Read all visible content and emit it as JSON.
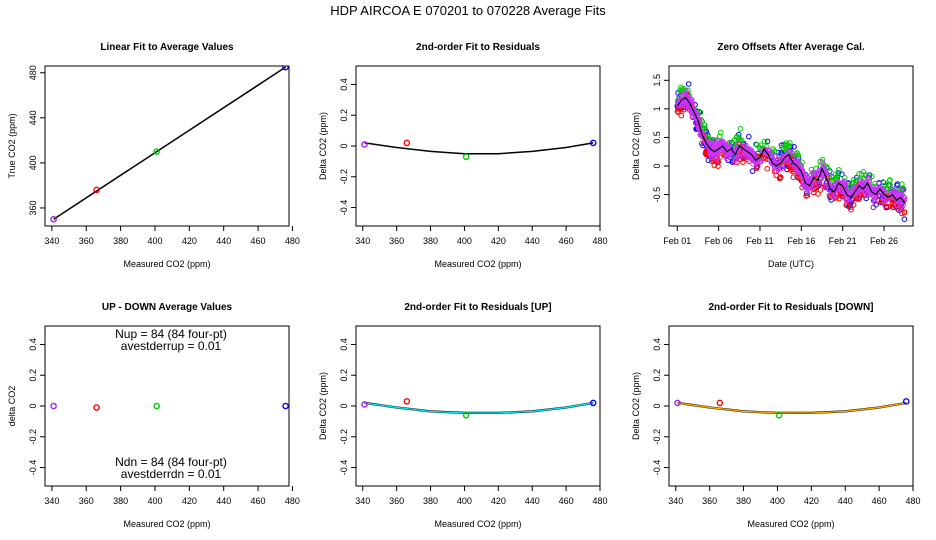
{
  "page_title": "HDP    AIRCOA E    070201 to 070228    Average Fits",
  "colors": {
    "purple": "#a020f0",
    "red": "#ff0000",
    "green": "#00cc00",
    "blue": "#0000ff",
    "black": "#000000",
    "cyan": "#00e5ee",
    "orange": "#ffa500",
    "magenta": "#cc33ff"
  },
  "chart_data": [
    {
      "id": "p1",
      "type": "scatter",
      "title": "Linear Fit to Average Values",
      "xlabel": "Measured CO2 (ppm)",
      "ylabel": "True CO2 (ppm)",
      "xlim": [
        336,
        478
      ],
      "ylim": [
        344,
        486
      ],
      "xticks": [
        340,
        360,
        380,
        400,
        420,
        440,
        460,
        480
      ],
      "yticks": [
        360,
        400,
        440,
        480
      ],
      "points": [
        {
          "x": 341,
          "y": 350,
          "color": "purple"
        },
        {
          "x": 366,
          "y": 376,
          "color": "red"
        },
        {
          "x": 401,
          "y": 410,
          "color": "green"
        },
        {
          "x": 476,
          "y": 485,
          "color": "blue"
        }
      ],
      "line": {
        "x": [
          341,
          476
        ],
        "y": [
          350,
          485
        ],
        "color": "black"
      }
    },
    {
      "id": "p2",
      "type": "scatter",
      "title": "2nd-order Fit to Residuals",
      "xlabel": "Measured CO2 (ppm)",
      "ylabel": "Delta CO2 (ppm)",
      "xlim": [
        336,
        480
      ],
      "ylim": [
        -0.52,
        0.52
      ],
      "xticks": [
        340,
        360,
        380,
        400,
        420,
        440,
        460,
        480
      ],
      "yticks": [
        -0.4,
        -0.2,
        0.0,
        0.2,
        0.4
      ],
      "points": [
        {
          "x": 341,
          "y": 0.01,
          "color": "purple"
        },
        {
          "x": 366,
          "y": 0.02,
          "color": "red"
        },
        {
          "x": 401,
          "y": -0.07,
          "color": "green"
        },
        {
          "x": 476,
          "y": 0.02,
          "color": "blue"
        }
      ],
      "curve": {
        "x": [
          341,
          360,
          380,
          400,
          420,
          440,
          460,
          476
        ],
        "y": [
          0.02,
          -0.01,
          -0.035,
          -0.05,
          -0.05,
          -0.035,
          -0.01,
          0.02
        ],
        "color": "black"
      }
    },
    {
      "id": "p3",
      "type": "scatter",
      "title": "Zero Offsets After Average Cal.",
      "xlabel": "Date (UTC)",
      "ylabel": "Delta CO2 (ppm)",
      "xlim": [
        -1,
        28.5
      ],
      "ylim": [
        -1.05,
        1.75
      ],
      "xticks": [
        0,
        5,
        10,
        15,
        20,
        25
      ],
      "xticklabels": [
        "Feb 01",
        "Feb 06",
        "Feb 11",
        "Feb 16",
        "Feb 21",
        "Feb 26"
      ],
      "yticks": [
        -0.5,
        0.0,
        0.5,
        1.0,
        1.5
      ],
      "trend": {
        "x": [
          0,
          0.5,
          1,
          1.5,
          2,
          2.5,
          3,
          3.5,
          4,
          4.5,
          5,
          5.5,
          6,
          6.5,
          7,
          7.5,
          8,
          8.5,
          9,
          9.5,
          10,
          10.5,
          11,
          11.5,
          12,
          12.5,
          13,
          13.5,
          14,
          14.5,
          15,
          15.5,
          16,
          16.5,
          17,
          17.5,
          18,
          18.5,
          19,
          19.5,
          20,
          20.5,
          21,
          21.5,
          22,
          22.5,
          23,
          23.5,
          24,
          24.5,
          25,
          25.5,
          26,
          26.5,
          27,
          27.5
        ],
        "y": [
          1.05,
          1.15,
          1.2,
          1.1,
          0.95,
          0.8,
          0.55,
          0.4,
          0.3,
          0.25,
          0.3,
          0.35,
          0.25,
          0.3,
          0.2,
          0.35,
          0.3,
          0.25,
          0.2,
          0.1,
          0.15,
          0.3,
          0.2,
          0.05,
          0.0,
          0.05,
          0.15,
          0.2,
          0.05,
          0.0,
          -0.1,
          -0.3,
          -0.35,
          -0.2,
          -0.25,
          -0.05,
          -0.2,
          -0.4,
          -0.45,
          -0.3,
          -0.35,
          -0.5,
          -0.55,
          -0.45,
          -0.35,
          -0.4,
          -0.3,
          -0.45,
          -0.5,
          -0.4,
          -0.5,
          -0.55,
          -0.5,
          -0.6,
          -0.55,
          -0.65
        ],
        "color": "black"
      }
    },
    {
      "id": "p4",
      "type": "scatter",
      "title": "UP - DOWN Average Values",
      "xlabel": "Measured CO2 (ppm)",
      "ylabel": "delta CO2",
      "xlim": [
        336,
        478
      ],
      "ylim": [
        -0.52,
        0.52
      ],
      "xticks": [
        340,
        360,
        380,
        400,
        420,
        440,
        460,
        480
      ],
      "yticks": [
        -0.4,
        -0.2,
        0.0,
        0.2,
        0.4
      ],
      "points": [
        {
          "x": 341,
          "y": 0.0,
          "color": "purple"
        },
        {
          "x": 366,
          "y": -0.01,
          "color": "red"
        },
        {
          "x": 401,
          "y": 0.0,
          "color": "green"
        },
        {
          "x": 476,
          "y": 0.0,
          "color": "blue"
        }
      ],
      "annotations_top": [
        "Nup = 84 (84 four-pt)",
        "avestderrup =  0.01"
      ],
      "annotations_bottom": [
        "Ndn = 84 (84 four-pt)",
        "avestderrdn =  0.01"
      ]
    },
    {
      "id": "p5",
      "type": "scatter",
      "title": "2nd-order Fit to Residuals [UP]",
      "xlabel": "Measured CO2 (ppm)",
      "ylabel": "Delta CO2 (ppm)",
      "xlim": [
        336,
        480
      ],
      "ylim": [
        -0.52,
        0.52
      ],
      "xticks": [
        340,
        360,
        380,
        400,
        420,
        440,
        460,
        480
      ],
      "yticks": [
        -0.4,
        -0.2,
        0.0,
        0.2,
        0.4
      ],
      "points": [
        {
          "x": 341,
          "y": 0.01,
          "color": "purple"
        },
        {
          "x": 366,
          "y": 0.03,
          "color": "red"
        },
        {
          "x": 401,
          "y": -0.06,
          "color": "green"
        },
        {
          "x": 476,
          "y": 0.02,
          "color": "blue"
        }
      ],
      "curve": {
        "x": [
          341,
          360,
          380,
          400,
          420,
          440,
          460,
          476
        ],
        "y": [
          0.02,
          -0.01,
          -0.035,
          -0.045,
          -0.045,
          -0.035,
          -0.01,
          0.02
        ],
        "color": "cyan"
      }
    },
    {
      "id": "p6",
      "type": "scatter",
      "title": "2nd-order Fit to Residuals [DOWN]",
      "xlabel": "Measured CO2 (ppm)",
      "ylabel": "Delta CO2 (ppm)",
      "xlim": [
        336,
        480
      ],
      "ylim": [
        -0.52,
        0.52
      ],
      "xticks": [
        340,
        360,
        380,
        400,
        420,
        440,
        460,
        480
      ],
      "yticks": [
        -0.4,
        -0.2,
        0.0,
        0.2,
        0.4
      ],
      "points": [
        {
          "x": 341,
          "y": 0.02,
          "color": "purple"
        },
        {
          "x": 366,
          "y": 0.02,
          "color": "red"
        },
        {
          "x": 401,
          "y": -0.06,
          "color": "green"
        },
        {
          "x": 476,
          "y": 0.03,
          "color": "blue"
        }
      ],
      "curve": {
        "x": [
          341,
          360,
          380,
          400,
          420,
          440,
          460,
          476
        ],
        "y": [
          0.02,
          -0.01,
          -0.035,
          -0.045,
          -0.045,
          -0.035,
          -0.01,
          0.02
        ],
        "color": "orange"
      }
    }
  ]
}
